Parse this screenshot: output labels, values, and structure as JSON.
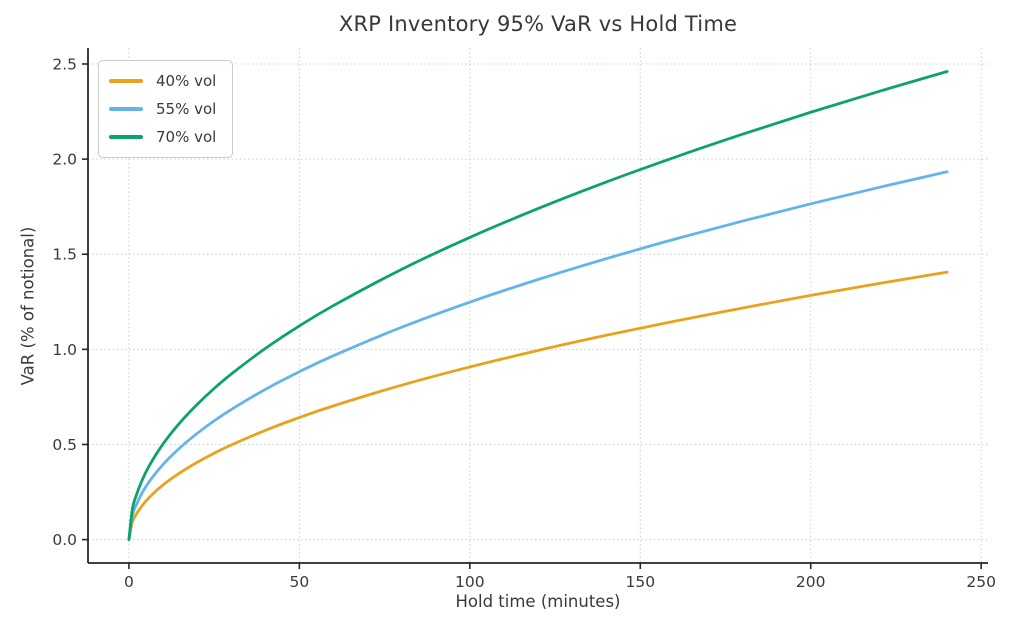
{
  "chart_data": {
    "type": "line",
    "title": "XRP Inventory 95% VaR vs Hold Time",
    "xlabel": "Hold time (minutes)",
    "ylabel": "VaR (% of notional)",
    "x": [
      0,
      1,
      2,
      4,
      6,
      9,
      12,
      16,
      20,
      25,
      30,
      40,
      50,
      60,
      80,
      100,
      120,
      140,
      160,
      180,
      200,
      220,
      240
    ],
    "series": [
      {
        "name": "40% vol",
        "color": "#E9A21C",
        "values": [
          0,
          0.0908,
          0.1284,
          0.1815,
          0.2223,
          0.2723,
          0.3144,
          0.363,
          0.4059,
          0.4538,
          0.4971,
          0.574,
          0.6418,
          0.703,
          0.8118,
          0.9076,
          0.9942,
          1.0739,
          1.148,
          1.2177,
          1.2836,
          1.3462,
          1.406
        ]
      },
      {
        "name": "55% vol",
        "color": "#62B4EA",
        "values": [
          0,
          0.1248,
          0.1765,
          0.2496,
          0.3057,
          0.3744,
          0.4323,
          0.4992,
          0.5581,
          0.624,
          0.6835,
          0.7893,
          0.8824,
          0.9666,
          1.1162,
          1.248,
          1.3671,
          1.4766,
          1.5786,
          1.6744,
          1.7649,
          1.8511,
          1.9333
        ]
      },
      {
        "name": "70% vol",
        "color": "#0CA26E",
        "values": [
          0,
          0.1588,
          0.2246,
          0.3177,
          0.3891,
          0.4765,
          0.5502,
          0.6353,
          0.7103,
          0.7942,
          0.8699,
          1.0045,
          1.1231,
          1.2302,
          1.4206,
          1.5883,
          1.7399,
          1.8793,
          2.009,
          2.1309,
          2.2462,
          2.3558,
          2.4606
        ]
      }
    ],
    "xticks": {
      "values": [
        0,
        50,
        100,
        150,
        200,
        250
      ],
      "labels": [
        "0",
        "50",
        "100",
        "150",
        "200",
        "250"
      ]
    },
    "yticks": {
      "values": [
        0,
        0.5,
        1.0,
        1.5,
        2.0,
        2.5
      ],
      "labels": [
        "0.0",
        "0.5",
        "1.0",
        "1.5",
        "2.0",
        "2.5"
      ]
    },
    "xlim": [
      -12,
      252
    ],
    "ylim": [
      -0.123,
      2.584
    ],
    "grid": "dotted",
    "legend_position": "upper-left",
    "colors": {
      "grid": "#cccccc",
      "spine": "#262626",
      "text": "#3a3a3a"
    }
  }
}
